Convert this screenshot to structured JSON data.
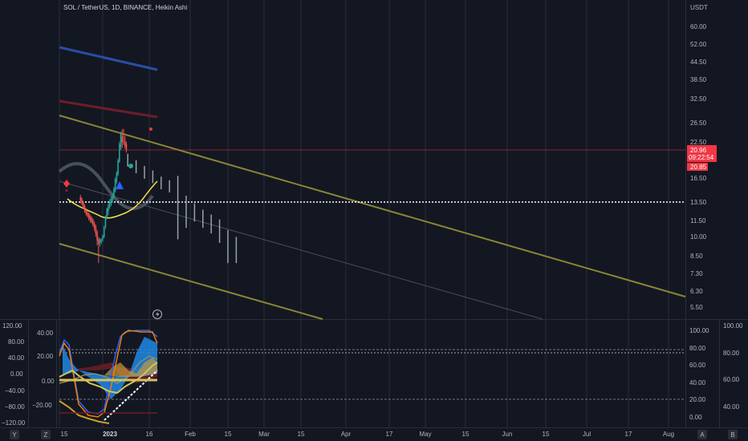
{
  "header": {
    "symbol": "SOL / TetherUS, 1D, BINANCE, Heikin Ashi"
  },
  "price_axis": {
    "currency": "USDT",
    "ticks": [
      "60.00",
      "52.00",
      "44.50",
      "38.50",
      "32.50",
      "26.50",
      "22.50",
      "16.50",
      "13.50",
      "11.50",
      "10.00",
      "8.50",
      "7.30",
      "6.30",
      "5.50"
    ]
  },
  "price_labels": {
    "last": "20.96",
    "countdown": "09:22:54",
    "alt": "20.85"
  },
  "osc_left_outer": [
    "120.00",
    "80.00",
    "40.00",
    "0.00",
    "−40.00",
    "−80.00",
    "−120.00"
  ],
  "osc_left_inner": [
    "40.00",
    "20.00",
    "0.00",
    "−20.00"
  ],
  "osc_right_inner": [
    "100.00",
    "80.00",
    "60.00",
    "40.00",
    "20.00",
    "0.00"
  ],
  "osc_right_outer": [
    "100.00",
    "80.00",
    "60.00",
    "40.00"
  ],
  "time_axis": [
    "15",
    "2023",
    "16",
    "Feb",
    "15",
    "Mar",
    "15",
    "Apr",
    "17",
    "May",
    "15",
    "Jun",
    "15",
    "Jul",
    "17",
    "Aug"
  ],
  "corner_buttons": {
    "left": "Y",
    "mid_left": "Z",
    "mid_right": "A",
    "right": "B"
  },
  "chart_data": {
    "type": "candlestick",
    "style": "Heikin Ashi",
    "symbol": "SOL / TetherUS",
    "interval": "1D",
    "exchange": "BINANCE",
    "y_scale": "log",
    "ylim": [
      5.0,
      70.0
    ],
    "last_price": 20.96,
    "dotted_level": 13.5,
    "candles": [
      {
        "x": "2022-12-16",
        "o": 14.0,
        "h": 14.3,
        "c": 13.6,
        "l": 13.3
      },
      {
        "x": "2022-12-17",
        "o": 13.8,
        "h": 14.0,
        "c": 13.3,
        "l": 13.1
      },
      {
        "x": "2022-12-18",
        "o": 13.4,
        "h": 13.6,
        "c": 12.9,
        "l": 12.7
      },
      {
        "x": "2022-12-19",
        "o": 13.0,
        "h": 13.2,
        "c": 12.5,
        "l": 12.3
      },
      {
        "x": "2022-12-20",
        "o": 12.6,
        "h": 12.8,
        "c": 12.2,
        "l": 12.0
      },
      {
        "x": "2022-12-21",
        "o": 12.3,
        "h": 12.5,
        "c": 12.0,
        "l": 11.8
      },
      {
        "x": "2022-12-22",
        "o": 12.1,
        "h": 12.3,
        "c": 11.8,
        "l": 11.5
      },
      {
        "x": "2022-12-23",
        "o": 11.9,
        "h": 12.1,
        "c": 11.6,
        "l": 11.3
      },
      {
        "x": "2022-12-24",
        "o": 11.7,
        "h": 11.9,
        "c": 11.4,
        "l": 11.2
      },
      {
        "x": "2022-12-25",
        "o": 11.5,
        "h": 11.7,
        "c": 11.1,
        "l": 10.9
      },
      {
        "x": "2022-12-26",
        "o": 11.2,
        "h": 11.4,
        "c": 10.8,
        "l": 10.5
      },
      {
        "x": "2022-12-27",
        "o": 10.9,
        "h": 11.1,
        "c": 10.3,
        "l": 10.0
      },
      {
        "x": "2022-12-28",
        "o": 10.4,
        "h": 10.6,
        "c": 9.7,
        "l": 9.3
      },
      {
        "x": "2022-12-29",
        "o": 9.8,
        "h": 10.0,
        "c": 9.4,
        "l": 8.0
      },
      {
        "x": "2022-12-30",
        "o": 9.5,
        "h": 9.9,
        "c": 9.7,
        "l": 9.2
      },
      {
        "x": "2022-12-31",
        "o": 9.6,
        "h": 9.9,
        "c": 9.8,
        "l": 9.4
      },
      {
        "x": "2023-01-01",
        "o": 9.8,
        "h": 10.2,
        "c": 10.1,
        "l": 9.6
      },
      {
        "x": "2023-01-02",
        "o": 10.0,
        "h": 11.0,
        "c": 10.9,
        "l": 9.9
      },
      {
        "x": "2023-01-03",
        "o": 10.9,
        "h": 12.0,
        "c": 11.8,
        "l": 10.7
      },
      {
        "x": "2023-01-04",
        "o": 11.8,
        "h": 12.8,
        "c": 12.7,
        "l": 11.6
      },
      {
        "x": "2023-01-05",
        "o": 12.4,
        "h": 13.3,
        "c": 13.0,
        "l": 12.0
      },
      {
        "x": "2023-01-06",
        "o": 12.9,
        "h": 13.8,
        "c": 13.5,
        "l": 12.7
      },
      {
        "x": "2023-01-07",
        "o": 13.3,
        "h": 14.1,
        "c": 13.8,
        "l": 13.0
      },
      {
        "x": "2023-01-08",
        "o": 13.6,
        "h": 14.5,
        "c": 14.2,
        "l": 13.4
      },
      {
        "x": "2023-01-09",
        "o": 14.0,
        "h": 15.3,
        "c": 15.0,
        "l": 13.8
      },
      {
        "x": "2023-01-10",
        "o": 14.8,
        "h": 16.6,
        "c": 16.3,
        "l": 14.6
      },
      {
        "x": "2023-01-11",
        "o": 16.0,
        "h": 17.5,
        "c": 17.2,
        "l": 15.7
      },
      {
        "x": "2023-01-12",
        "o": 17.0,
        "h": 19.5,
        "c": 19.2,
        "l": 16.8
      },
      {
        "x": "2023-01-13",
        "o": 19.0,
        "h": 22.5,
        "c": 22.0,
        "l": 18.8
      },
      {
        "x": "2023-01-14",
        "o": 21.5,
        "h": 24.5,
        "c": 24.0,
        "l": 21.0
      },
      {
        "x": "2023-01-15",
        "o": 23.5,
        "h": 25.0,
        "c": 22.4,
        "l": 21.3
      },
      {
        "x": "2023-01-16",
        "o": 22.8,
        "h": 25.1,
        "c": 22.7,
        "l": 21.9
      },
      {
        "x": "2023-01-17",
        "o": 22.6,
        "h": 23.6,
        "c": 21.7,
        "l": 21.2
      },
      {
        "x": "2023-01-18",
        "o": 22.0,
        "h": 22.5,
        "c": 20.96,
        "l": 20.5
      }
    ],
    "projection_bars": [
      {
        "x": "2023-01-19",
        "high": 20.3,
        "low": 18.2
      },
      {
        "x": "2023-01-25",
        "high": 19.2,
        "low": 17.2
      },
      {
        "x": "2023-01-31",
        "high": 18.3,
        "low": 16.4
      },
      {
        "x": "2023-02-06",
        "high": 17.6,
        "low": 15.8
      },
      {
        "x": "2023-02-12",
        "high": 16.7,
        "low": 15.0
      },
      {
        "x": "2023-02-18",
        "high": 16.2,
        "low": 14.6
      },
      {
        "x": "2023-02-24",
        "high": 16.8,
        "low": 9.8
      },
      {
        "x": "2023-03-02",
        "high": 14.2,
        "low": 10.8
      },
      {
        "x": "2023-03-08",
        "high": 13.3,
        "low": 11.4
      },
      {
        "x": "2023-03-14",
        "high": 12.6,
        "low": 10.8
      },
      {
        "x": "2023-03-20",
        "high": 12.1,
        "low": 10.3
      },
      {
        "x": "2023-03-26",
        "high": 11.6,
        "low": 9.5
      },
      {
        "x": "2023-04-01",
        "high": 10.6,
        "low": 8.0
      },
      {
        "x": "2023-04-07",
        "high": 10.0,
        "low": 8.0
      }
    ],
    "oscillator": {
      "left_scale": [
        -120,
        120
      ],
      "right_scale": [
        0,
        100
      ],
      "levels": [
        80,
        20
      ]
    },
    "colors": {
      "up": "#26a69a",
      "down": "#ef5350",
      "channel": "#8a8634",
      "blue_line": "#2a4ea8",
      "red_line": "#6e1d26",
      "yellow_ma": "#f5e642",
      "grey_ma": "#4a4f5c",
      "projection": "#9aa0aa",
      "price_line": "#f23645"
    }
  }
}
